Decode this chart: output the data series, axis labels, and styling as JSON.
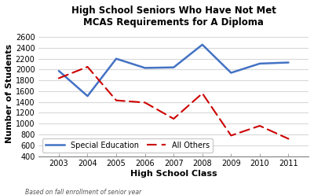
{
  "title_line1": "High School Seniors Who Have Not Met",
  "title_line2": "MCAS Requirements for A Diploma",
  "xlabel": "High School Class",
  "ylabel": "Number of Students",
  "footnote": "Based on fall enrollment of senior year",
  "years": [
    2003,
    2004,
    2005,
    2006,
    2007,
    2008,
    2009,
    2010,
    2011
  ],
  "special_ed": [
    1975,
    1510,
    2200,
    2030,
    2040,
    2460,
    1940,
    2110,
    2130
  ],
  "all_others": [
    1840,
    2050,
    1430,
    1390,
    1090,
    1560,
    780,
    960,
    720
  ],
  "ylim": [
    400,
    2700
  ],
  "yticks": [
    400,
    600,
    800,
    1000,
    1200,
    1400,
    1600,
    1800,
    2000,
    2200,
    2400,
    2600
  ],
  "special_ed_color": "#4472C4",
  "all_others_color": "#CC0000",
  "plot_bg_color": "#FFFFFF",
  "fig_bg_color": "#FFFFFF",
  "grid_color": "#D9D9D9",
  "axis_color": "#808080",
  "text_color": "#000000",
  "legend_loc": "lower left"
}
